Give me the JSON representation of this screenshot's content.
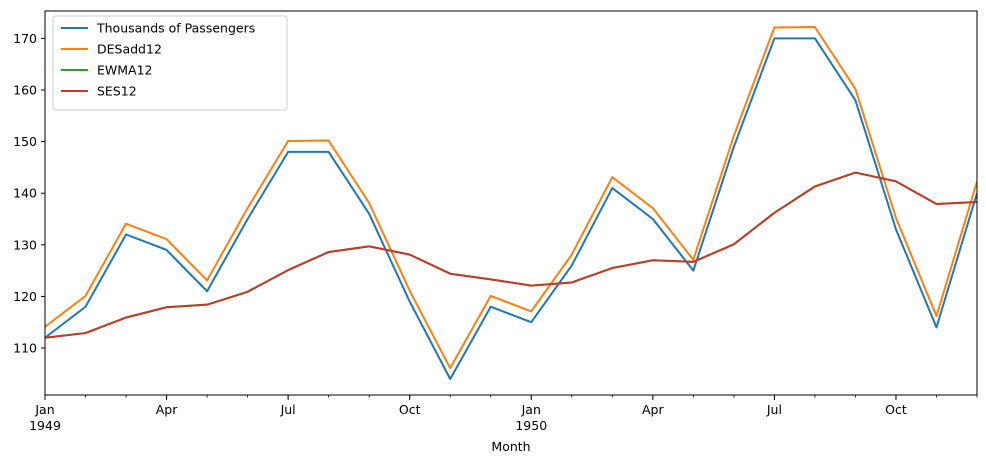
{
  "chart_data": {
    "type": "line",
    "xlabel": "Month",
    "x": [
      "1949-01",
      "1949-02",
      "1949-03",
      "1949-04",
      "1949-05",
      "1949-06",
      "1949-07",
      "1949-08",
      "1949-09",
      "1949-10",
      "1949-11",
      "1949-12",
      "1950-01",
      "1950-02",
      "1950-03",
      "1950-04",
      "1950-05",
      "1950-06",
      "1950-07",
      "1950-08",
      "1950-09",
      "1950-10",
      "1950-11",
      "1950-12"
    ],
    "x_tick_labels": [
      {
        "x": "1949-01",
        "label": "Jan",
        "sublabel": "1949"
      },
      {
        "x": "1949-04",
        "label": "Apr",
        "sublabel": ""
      },
      {
        "x": "1949-07",
        "label": "Jul",
        "sublabel": ""
      },
      {
        "x": "1949-10",
        "label": "Oct",
        "sublabel": ""
      },
      {
        "x": "1950-01",
        "label": "Jan",
        "sublabel": "1950"
      },
      {
        "x": "1950-04",
        "label": "Apr",
        "sublabel": ""
      },
      {
        "x": "1950-07",
        "label": "Jul",
        "sublabel": ""
      },
      {
        "x": "1950-10",
        "label": "Oct",
        "sublabel": ""
      }
    ],
    "y_ticks": [
      110,
      120,
      130,
      140,
      150,
      160,
      170
    ],
    "ylim": [
      100.9,
      175.3
    ],
    "grid": false,
    "legend_position": "top-left",
    "series": [
      {
        "name": "Thousands of Passengers",
        "color": "#1f77b4",
        "values": [
          112,
          118,
          132,
          129,
          121,
          135,
          148,
          148,
          136,
          119,
          104,
          118,
          115,
          126,
          141,
          135,
          125,
          149,
          170,
          170,
          158,
          133,
          114,
          140
        ]
      },
      {
        "name": "DESadd12",
        "color": "#ff7f0e",
        "values": [
          114.1,
          120.1,
          134.1,
          131.1,
          123.1,
          137.1,
          150.1,
          150.2,
          138.1,
          121.1,
          106.1,
          120.1,
          117.1,
          128.1,
          143.1,
          137.1,
          127.1,
          151.1,
          172.1,
          172.2,
          160.2,
          135.2,
          116.2,
          142.2
        ]
      },
      {
        "name": "EWMA12",
        "color": "#2ca02c",
        "values": [
          112.0,
          112.9,
          115.9,
          117.9,
          118.4,
          120.9,
          125.1,
          128.6,
          129.7,
          128.1,
          124.4,
          123.3,
          122.1,
          122.7,
          125.5,
          127.0,
          126.7,
          130.1,
          136.2,
          141.3,
          144.0,
          142.3,
          137.9,
          138.3
        ]
      },
      {
        "name": "SES12",
        "color": "#c23b2a",
        "values": [
          112.0,
          112.9,
          115.9,
          117.9,
          118.4,
          120.9,
          125.1,
          128.6,
          129.7,
          128.1,
          124.4,
          123.3,
          122.1,
          122.7,
          125.5,
          127.0,
          126.7,
          130.1,
          136.2,
          141.3,
          144.0,
          142.3,
          137.9,
          138.3
        ]
      }
    ]
  }
}
